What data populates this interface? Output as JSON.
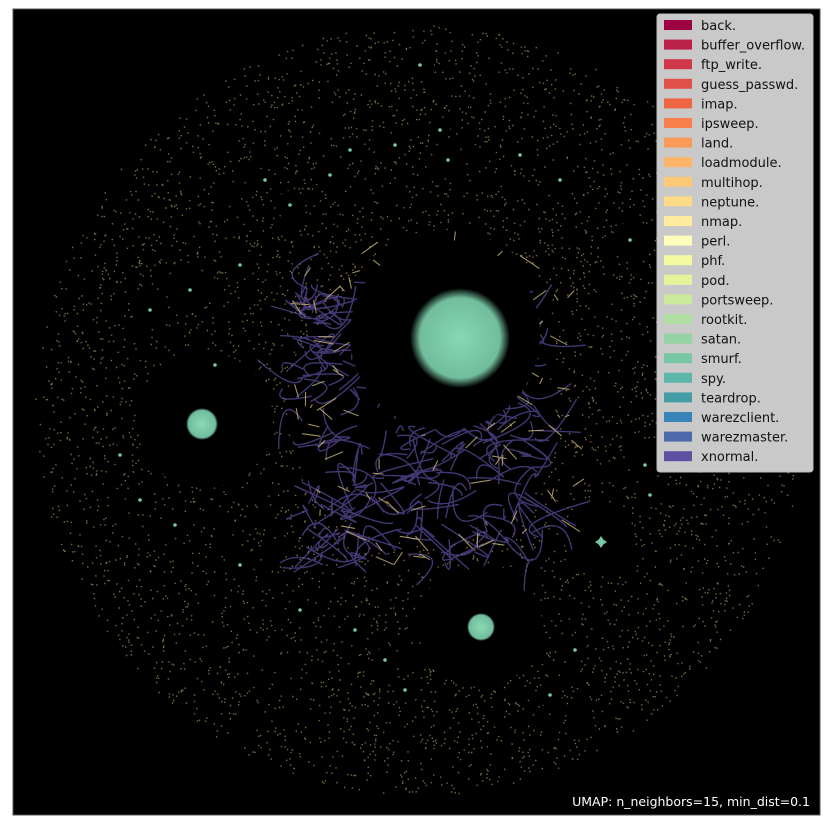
{
  "chart_data": {
    "type": "scatter",
    "title": "",
    "xlabel": "",
    "ylabel": "",
    "grid": false,
    "axes_ticks": false,
    "background": "#000000",
    "legend_placement": "top-right",
    "caption": "UMAP: n_neighbors=15, min_dist=0.1",
    "caption_placement": "bottom-right",
    "legend": [
      {
        "label": "back.",
        "color": "#9e0142"
      },
      {
        "label": "buffer_overflow.",
        "color": "#bb2149"
      },
      {
        "label": "ftp_write.",
        "color": "#d0374a"
      },
      {
        "label": "guess_passwd.",
        "color": "#e04f48"
      },
      {
        "label": "imap.",
        "color": "#ee6544"
      },
      {
        "label": "ipsweep.",
        "color": "#f67f4b"
      },
      {
        "label": "land.",
        "color": "#fa9a58"
      },
      {
        "label": "loadmodule.",
        "color": "#fdb466"
      },
      {
        "label": "multihop.",
        "color": "#fdc877"
      },
      {
        "label": "neptune.",
        "color": "#fedb87"
      },
      {
        "label": "nmap.",
        "color": "#feeb9d"
      },
      {
        "label": "perl.",
        "color": "#fffdbc"
      },
      {
        "label": "phf.",
        "color": "#f4fa9f"
      },
      {
        "label": "pod.",
        "color": "#e5f49a"
      },
      {
        "label": "portsweep.",
        "color": "#ccea9d"
      },
      {
        "label": "rootkit.",
        "color": "#b1dfa3"
      },
      {
        "label": "satan.",
        "color": "#93d3a4"
      },
      {
        "label": "smurf.",
        "color": "#77c7a5"
      },
      {
        "label": "spy.",
        "color": "#5cb7a9"
      },
      {
        "label": "teardrop.",
        "color": "#449da4"
      },
      {
        "label": "warezclient.",
        "color": "#3884b8"
      },
      {
        "label": "warezmaster.",
        "color": "#4f69ad"
      },
      {
        "label": "xnormal.",
        "color": "#5e4fa2"
      }
    ],
    "colors": {
      "scatter_gold": "#d8c27a",
      "normal_purple": "#5e4fa2",
      "cluster_green": "#77c7a5"
    }
  }
}
